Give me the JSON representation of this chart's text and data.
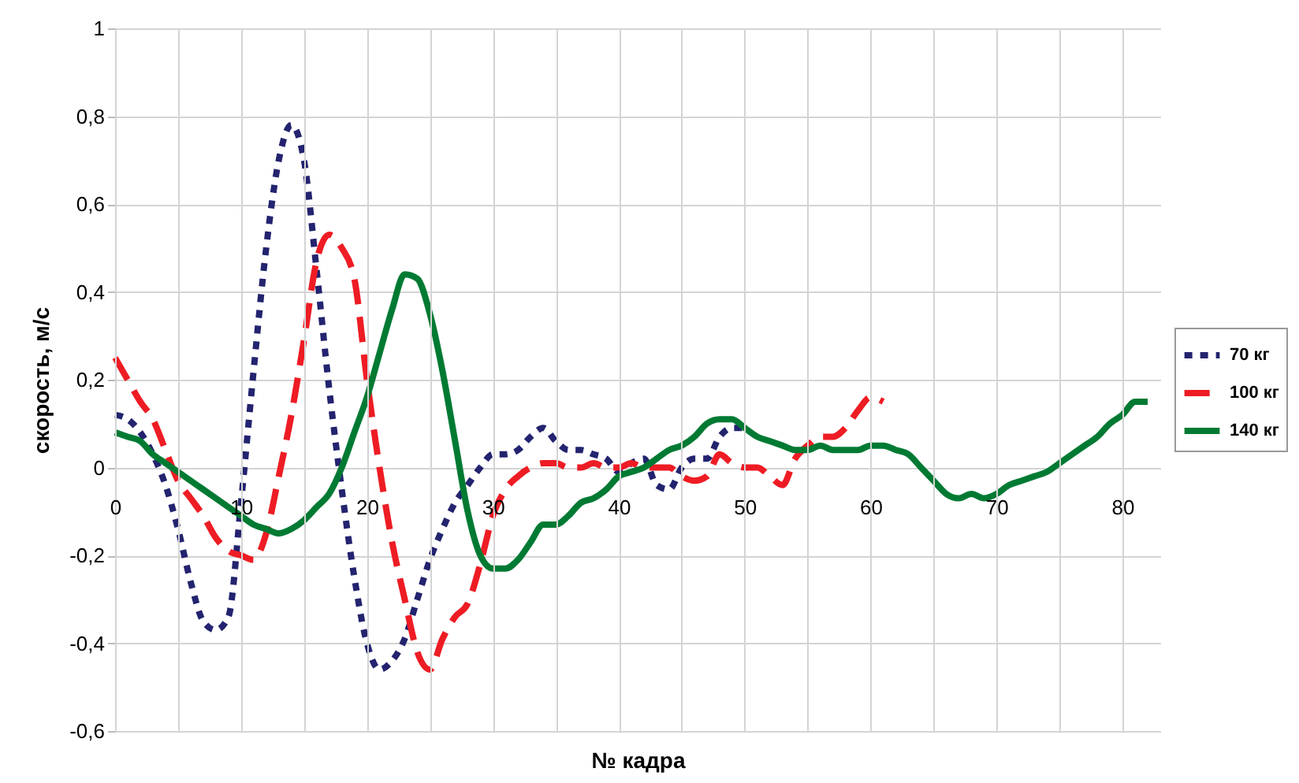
{
  "chart_data": {
    "type": "line",
    "xlabel": "№ кадра",
    "ylabel": "скорость, м/с",
    "xlim": [
      0,
      83
    ],
    "ylim": [
      -0.6,
      1
    ],
    "xticks": [
      0,
      {
        "value": 5,
        "label": null
      },
      10,
      {
        "value": 15,
        "label": null
      },
      20,
      {
        "value": 25,
        "label": null
      },
      30,
      {
        "value": 35,
        "label": null
      },
      40,
      {
        "value": 45,
        "label": null
      },
      50,
      {
        "value": 55,
        "label": null
      },
      60,
      {
        "value": 65,
        "label": null
      },
      70,
      {
        "value": 75,
        "label": null
      },
      80
    ],
    "yticks": [
      {
        "value": -0.6,
        "label": "-0,6"
      },
      {
        "value": -0.4,
        "label": "-0,4"
      },
      {
        "value": -0.2,
        "label": "-0,2"
      },
      0,
      {
        "value": 0.2,
        "label": "0,2"
      },
      {
        "value": 0.4,
        "label": "0,4"
      },
      {
        "value": 0.6,
        "label": "0,6"
      },
      {
        "value": 0.8,
        "label": "0,8"
      },
      1
    ],
    "grid": true,
    "legend": "right",
    "marker": "none",
    "series": [
      {
        "name": "70 кг",
        "color": "#23236f",
        "line_style": "dotted",
        "x": [
          0,
          1,
          2,
          3,
          4,
          5,
          6,
          7,
          8,
          9,
          10,
          11,
          12,
          13,
          14,
          15,
          16,
          17,
          18,
          19,
          20,
          21,
          22,
          23,
          24,
          25,
          26,
          27,
          28,
          29,
          30,
          31,
          32,
          33,
          34,
          35,
          36,
          37,
          38,
          39,
          40,
          41,
          42,
          43,
          44,
          45,
          46,
          47,
          48,
          49,
          50
        ],
        "values": [
          0.12,
          0.11,
          0.08,
          0.03,
          -0.04,
          -0.14,
          -0.26,
          -0.35,
          -0.37,
          -0.34,
          -0.08,
          0.22,
          0.5,
          0.7,
          0.78,
          0.7,
          0.45,
          0.18,
          -0.05,
          -0.25,
          -0.4,
          -0.46,
          -0.44,
          -0.39,
          -0.3,
          -0.21,
          -0.14,
          -0.08,
          -0.04,
          0.0,
          0.03,
          0.03,
          0.04,
          0.07,
          0.09,
          0.06,
          0.04,
          0.04,
          0.03,
          0.02,
          -0.01,
          0.01,
          0.02,
          -0.04,
          -0.05,
          0.0,
          0.02,
          0.02,
          0.07,
          0.09,
          0.09
        ]
      },
      {
        "name": "100 кг",
        "color": "#ee1c24",
        "line_style": "dashed",
        "x": [
          0,
          1,
          2,
          3,
          4,
          5,
          6,
          7,
          8,
          9,
          10,
          11,
          12,
          13,
          14,
          15,
          16,
          17,
          18,
          19,
          20,
          21,
          22,
          23,
          24,
          25,
          26,
          27,
          28,
          29,
          30,
          31,
          32,
          33,
          34,
          35,
          36,
          37,
          38,
          39,
          40,
          41,
          42,
          43,
          44,
          45,
          46,
          47,
          48,
          49,
          50,
          51,
          52,
          53,
          54,
          55,
          56,
          57,
          58,
          59,
          60,
          61
        ],
        "values": [
          0.25,
          0.2,
          0.15,
          0.11,
          0.04,
          -0.03,
          -0.07,
          -0.11,
          -0.16,
          -0.19,
          -0.2,
          -0.21,
          -0.15,
          -0.02,
          0.12,
          0.29,
          0.47,
          0.53,
          0.5,
          0.43,
          0.2,
          0.0,
          -0.17,
          -0.3,
          -0.42,
          -0.46,
          -0.39,
          -0.34,
          -0.31,
          -0.22,
          -0.11,
          -0.05,
          -0.02,
          0.0,
          0.01,
          0.01,
          0.0,
          0.0,
          0.01,
          0.0,
          0.0,
          0.01,
          0.0,
          0.0,
          0.0,
          -0.02,
          -0.03,
          -0.02,
          0.03,
          0.01,
          0.0,
          0.0,
          -0.02,
          -0.04,
          0.02,
          0.05,
          0.07,
          0.07,
          0.09,
          0.13,
          0.16,
          0.15
        ]
      },
      {
        "name": "140 кг",
        "color": "#007a33",
        "line_style": "solid",
        "x": [
          0,
          1,
          2,
          3,
          4,
          5,
          6,
          7,
          8,
          9,
          10,
          11,
          12,
          13,
          14,
          15,
          16,
          17,
          18,
          19,
          20,
          21,
          22,
          23,
          24,
          25,
          26,
          27,
          28,
          29,
          30,
          31,
          32,
          33,
          34,
          35,
          36,
          37,
          38,
          39,
          40,
          41,
          42,
          43,
          44,
          45,
          46,
          47,
          48,
          49,
          50,
          51,
          52,
          53,
          54,
          55,
          56,
          57,
          58,
          59,
          60,
          61,
          62,
          63,
          64,
          65,
          66,
          67,
          68,
          69,
          70,
          71,
          72,
          73,
          74,
          75,
          76,
          77,
          78,
          79,
          80,
          81,
          82
        ],
        "values": [
          0.08,
          0.07,
          0.06,
          0.03,
          0.01,
          -0.01,
          -0.03,
          -0.05,
          -0.07,
          -0.09,
          -0.11,
          -0.13,
          -0.14,
          -0.15,
          -0.14,
          -0.12,
          -0.09,
          -0.06,
          0.0,
          0.08,
          0.16,
          0.26,
          0.36,
          0.44,
          0.43,
          0.35,
          0.22,
          0.06,
          -0.1,
          -0.2,
          -0.23,
          -0.23,
          -0.21,
          -0.17,
          -0.13,
          -0.13,
          -0.11,
          -0.08,
          -0.07,
          -0.05,
          -0.02,
          -0.01,
          0.0,
          0.02,
          0.04,
          0.05,
          0.07,
          0.1,
          0.11,
          0.11,
          0.09,
          0.07,
          0.06,
          0.05,
          0.04,
          0.04,
          0.05,
          0.04,
          0.04,
          0.04,
          0.05,
          0.05,
          0.04,
          0.03,
          0.0,
          -0.03,
          -0.06,
          -0.07,
          -0.06,
          -0.07,
          -0.06,
          -0.04,
          -0.03,
          -0.02,
          -0.01,
          0.01,
          0.03,
          0.05,
          0.07,
          0.1,
          0.12,
          0.15,
          0.15
        ]
      }
    ]
  }
}
